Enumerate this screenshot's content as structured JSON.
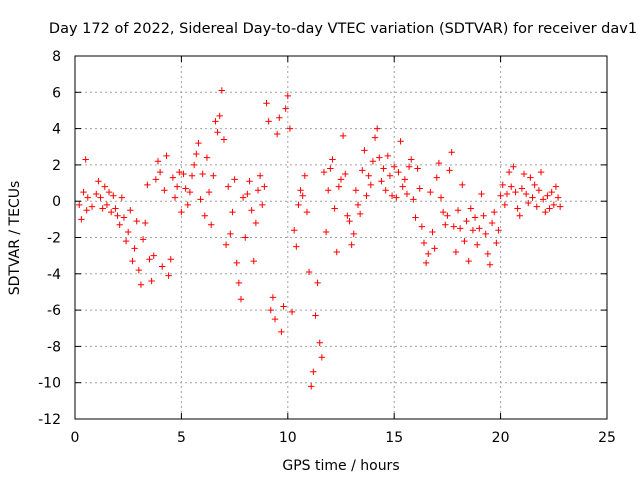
{
  "chart_data": {
    "type": "scatter",
    "title": "Day 172 of 2022, Sidereal Day-to-day VTEC variation (SDTVAR) for receiver dav1",
    "xlabel": "GPS time / hours",
    "ylabel": "SDTVAR / TECUs",
    "xlim": [
      0,
      25
    ],
    "ylim": [
      -12,
      8
    ],
    "x_ticks": [
      0,
      5,
      10,
      15,
      20,
      25
    ],
    "x_tick_labels": [
      "0",
      "5",
      "10",
      "15",
      "20",
      "25"
    ],
    "y_ticks": [
      -12,
      -10,
      -8,
      -6,
      -4,
      -2,
      0,
      2,
      4,
      6,
      8
    ],
    "y_tick_labels": [
      "-12",
      "-10",
      "-8",
      "-6",
      "-4",
      "-2",
      "0",
      "2",
      "4",
      "6",
      "8"
    ],
    "grid": true,
    "marker": "plus",
    "series": [
      {
        "name": "SDTVAR",
        "color": "#ff0000",
        "x": [
          0.2,
          0.3,
          0.4,
          0.5,
          0.55,
          0.6,
          0.8,
          1.0,
          1.1,
          1.2,
          1.3,
          1.4,
          1.5,
          1.6,
          1.7,
          1.8,
          1.9,
          2.0,
          2.1,
          2.2,
          2.3,
          2.4,
          2.5,
          2.6,
          2.7,
          2.8,
          2.9,
          3.0,
          3.1,
          3.2,
          3.3,
          3.4,
          3.5,
          3.6,
          3.7,
          3.8,
          3.9,
          4.0,
          4.1,
          4.2,
          4.3,
          4.4,
          4.5,
          4.6,
          4.7,
          4.8,
          4.9,
          5.0,
          5.1,
          5.2,
          5.3,
          5.4,
          5.5,
          5.6,
          5.7,
          5.8,
          5.9,
          6.0,
          6.1,
          6.2,
          6.3,
          6.4,
          6.5,
          6.6,
          6.7,
          6.8,
          6.9,
          7.0,
          7.1,
          7.2,
          7.3,
          7.4,
          7.5,
          7.6,
          7.7,
          7.8,
          7.9,
          8.0,
          8.1,
          8.2,
          8.3,
          8.4,
          8.5,
          8.6,
          8.7,
          8.8,
          8.9,
          9.0,
          9.1,
          9.2,
          9.3,
          9.4,
          9.5,
          9.6,
          9.7,
          9.8,
          9.9,
          10.0,
          10.1,
          10.2,
          10.3,
          10.4,
          10.5,
          10.6,
          10.7,
          10.8,
          10.9,
          11.0,
          11.1,
          11.2,
          11.3,
          11.4,
          11.5,
          11.6,
          11.7,
          11.8,
          11.9,
          12.0,
          12.1,
          12.2,
          12.3,
          12.4,
          12.5,
          12.6,
          12.7,
          12.8,
          12.9,
          13.0,
          13.1,
          13.2,
          13.3,
          13.4,
          13.5,
          13.6,
          13.7,
          13.8,
          13.9,
          14.0,
          14.1,
          14.2,
          14.3,
          14.4,
          14.5,
          14.6,
          14.7,
          14.8,
          14.9,
          15.0,
          15.1,
          15.2,
          15.3,
          15.4,
          15.5,
          15.6,
          15.7,
          15.8,
          15.9,
          16.0,
          16.1,
          16.2,
          16.3,
          16.4,
          16.5,
          16.6,
          16.7,
          16.8,
          16.9,
          17.0,
          17.1,
          17.2,
          17.3,
          17.4,
          17.5,
          17.6,
          17.7,
          17.8,
          17.9,
          18.0,
          18.1,
          18.2,
          18.3,
          18.4,
          18.5,
          18.6,
          18.7,
          18.8,
          18.9,
          19.0,
          19.1,
          19.2,
          19.3,
          19.4,
          19.5,
          19.6,
          19.7,
          19.8,
          19.9,
          20.0,
          20.1,
          20.2,
          20.3,
          20.4,
          20.5,
          20.6,
          20.7,
          20.8,
          20.9,
          21.0,
          21.1,
          21.2,
          21.3,
          21.4,
          21.5,
          21.6,
          21.7,
          21.8,
          21.9,
          22.0,
          22.1,
          22.2,
          22.3,
          22.4,
          22.5,
          22.6,
          22.7,
          22.8
        ],
        "y": [
          -0.2,
          -1.0,
          0.5,
          2.3,
          -0.5,
          0.2,
          -0.3,
          0.4,
          1.1,
          0.2,
          -0.4,
          0.8,
          -0.2,
          0.5,
          -0.6,
          0.3,
          -0.4,
          -0.8,
          -1.3,
          0.2,
          -0.9,
          -2.2,
          -1.7,
          -0.5,
          -3.3,
          -2.6,
          -1.1,
          -3.8,
          -4.6,
          -2.1,
          -1.2,
          0.9,
          -3.2,
          -4.4,
          -3.0,
          1.2,
          2.2,
          1.6,
          -3.6,
          0.6,
          2.5,
          -4.1,
          -3.2,
          1.3,
          0.2,
          0.8,
          1.6,
          -0.6,
          1.5,
          0.7,
          -0.2,
          0.5,
          1.4,
          2.0,
          2.6,
          3.2,
          0.1,
          1.5,
          -0.8,
          2.4,
          0.5,
          -1.3,
          1.4,
          4.4,
          3.8,
          4.7,
          6.1,
          3.4,
          -2.4,
          0.8,
          -1.8,
          -0.6,
          1.2,
          -3.4,
          -4.5,
          -5.4,
          0.2,
          -2.0,
          0.4,
          1.1,
          -0.5,
          -3.3,
          -1.2,
          0.6,
          1.4,
          -0.2,
          0.8,
          5.4,
          4.4,
          -6.0,
          -5.3,
          -6.5,
          3.7,
          4.6,
          -7.2,
          -5.8,
          5.1,
          5.8,
          4.0,
          -6.1,
          -1.6,
          -2.5,
          -0.2,
          0.6,
          0.3,
          1.4,
          -0.6,
          -3.9,
          -10.2,
          -9.4,
          -6.3,
          -4.5,
          -7.8,
          -8.6,
          1.6,
          -1.7,
          0.6,
          1.8,
          2.3,
          -0.4,
          -2.8,
          0.8,
          1.2,
          3.6,
          1.5,
          -0.8,
          -1.1,
          -2.4,
          -1.8,
          0.6,
          -0.2,
          -0.7,
          1.7,
          2.8,
          0.3,
          1.4,
          0.9,
          2.2,
          3.5,
          4.0,
          2.4,
          1.1,
          1.8,
          0.6,
          2.5,
          1.4,
          0.3,
          1.9,
          0.2,
          1.6,
          3.3,
          0.8,
          1.2,
          0.4,
          1.9,
          2.3,
          0.1,
          -0.9,
          1.8,
          0.7,
          -1.4,
          -2.3,
          -3.4,
          -2.9,
          0.5,
          -1.7,
          -2.6,
          1.3,
          2.1,
          0.2,
          -0.6,
          -1.3,
          -0.8,
          1.7,
          2.7,
          -1.4,
          -2.8,
          -0.5,
          -1.5,
          0.9,
          -2.2,
          -1.1,
          -3.3,
          -0.4,
          -1.6,
          -0.9,
          -2.4,
          -1.5,
          0.4,
          -0.8,
          -1.8,
          -2.9,
          -3.5,
          -1.2,
          -0.6,
          -2.3,
          -1.6,
          0.3,
          0.9,
          -0.2,
          0.4,
          1.6,
          0.8,
          1.9,
          0.5,
          -0.4,
          -0.8,
          0.7,
          1.5,
          0.4,
          -0.1,
          1.3,
          0.2,
          0.9,
          -0.3,
          0.6,
          1.6,
          0.1,
          -0.6,
          0.3,
          -0.4,
          0.5,
          -0.2,
          0.8,
          0.2,
          -0.3
        ]
      }
    ]
  }
}
